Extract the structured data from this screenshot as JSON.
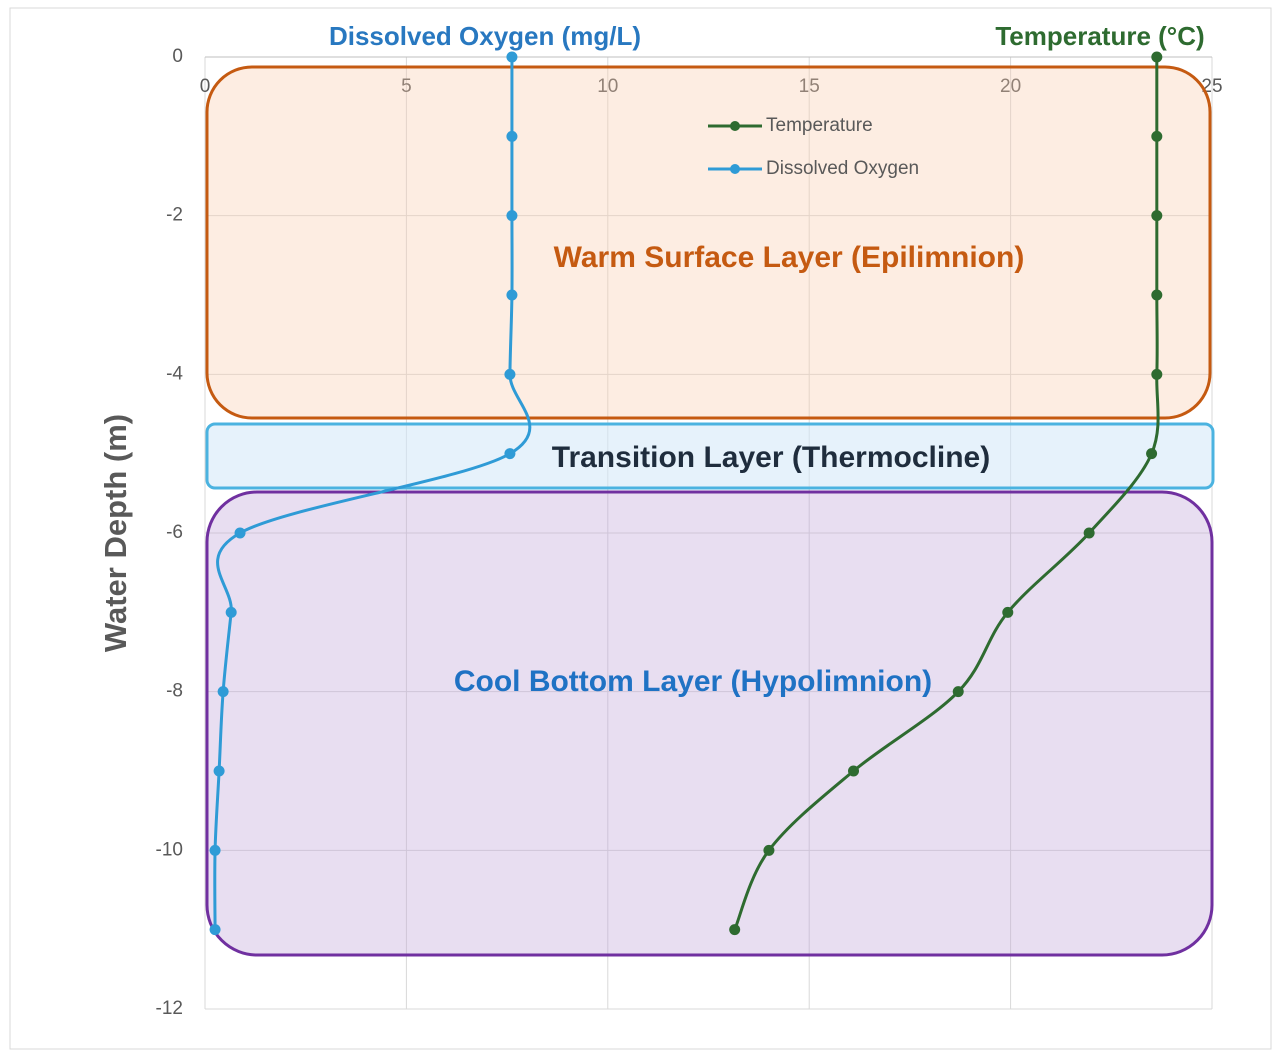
{
  "chart_data": {
    "type": "scatter",
    "x_title": "Dissolved Oxygen (mg/L)",
    "x_title_2": "Temperature (°C)",
    "y_title": "Water Depth (m)",
    "xlim": [
      0,
      25
    ],
    "xticks": [
      0,
      5,
      10,
      15,
      20,
      25
    ],
    "ylim": [
      -12,
      0
    ],
    "yticks": [
      0,
      -2,
      -4,
      -6,
      -8,
      -10,
      -12
    ],
    "grid": true,
    "smooth": true,
    "legend": "top",
    "series": [
      {
        "name": "Temperature",
        "color": "#2e6b30",
        "x": [
          23.63,
          23.63,
          23.63,
          23.63,
          23.63,
          23.5,
          21.95,
          19.93,
          18.7,
          16.1,
          14.0,
          13.15
        ],
        "y": [
          0,
          -1,
          -2,
          -3,
          -4,
          -5,
          -6,
          -7,
          -8,
          -9,
          -10,
          -11
        ]
      },
      {
        "name": "Dissolved Oxygen",
        "color": "#2f9bd6",
        "x": [
          7.62,
          7.62,
          7.62,
          7.62,
          7.57,
          7.57,
          0.87,
          0.65,
          0.45,
          0.35,
          0.25,
          0.25
        ],
        "y": [
          0,
          -1,
          -2,
          -3,
          -4,
          -5,
          -6,
          -7,
          -8,
          -9,
          -10,
          -11
        ]
      }
    ],
    "annotations": [
      {
        "text": "Warm Surface Layer (Epilimnion)",
        "color": "#c55a11"
      },
      {
        "text": "Transition Layer (Thermocline)",
        "color": "#1f2d3d"
      },
      {
        "text": "Cool Bottom Layer (Hypolimnion)",
        "color": "#1f72c4"
      }
    ]
  }
}
